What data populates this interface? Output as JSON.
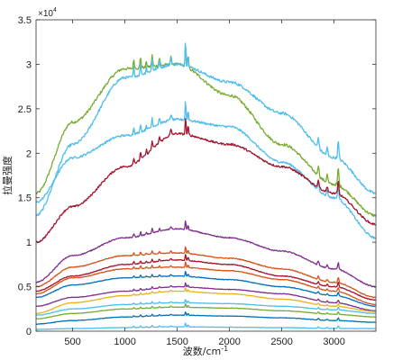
{
  "chart_data": {
    "type": "line",
    "title": "",
    "xlabel": "波数/cm",
    "xlabel_sup": "-1",
    "ylabel": "拉曼强度",
    "y_multiplier_base": "×10",
    "y_multiplier_exp": "4",
    "xlim": [
      150,
      3400
    ],
    "ylim": [
      0,
      3.5
    ],
    "x_ticks": [
      500,
      1000,
      1500,
      2000,
      2500,
      3000
    ],
    "x_tick_labels": [
      "500",
      "1000",
      "1500",
      "2000",
      "2500",
      "3000"
    ],
    "y_ticks": [
      0,
      0.5,
      1,
      1.5,
      2,
      2.5,
      3,
      3.5
    ],
    "y_tick_labels": [
      "0",
      "0.5",
      "1",
      "1.5",
      "2",
      "2.5",
      "3",
      "3.5"
    ],
    "grid": false,
    "x": [
      150,
      500,
      1000,
      1500,
      2000,
      2500,
      3000,
      3400
    ],
    "series": [
      {
        "color": "#77AC30",
        "values": [
          1.55,
          2.35,
          2.95,
          3.0,
          2.65,
          2.1,
          1.65,
          1.3
        ]
      },
      {
        "color": "#4DBEEE",
        "values": [
          1.3,
          2.1,
          2.85,
          3.0,
          2.8,
          2.45,
          1.95,
          1.55
        ]
      },
      {
        "color": "#4DBEEE",
        "values": [
          1.45,
          1.95,
          2.2,
          2.38,
          2.3,
          1.9,
          1.5,
          1.05
        ]
      },
      {
        "color": "#A2142F",
        "values": [
          1.0,
          1.4,
          1.85,
          2.22,
          2.1,
          1.85,
          1.55,
          1.2
        ]
      },
      {
        "color": "#7E2F8E",
        "values": [
          0.55,
          0.85,
          1.05,
          1.15,
          1.05,
          0.9,
          0.7,
          0.5
        ]
      },
      {
        "color": "#D95319",
        "values": [
          0.5,
          0.72,
          0.85,
          0.88,
          0.82,
          0.7,
          0.55,
          0.38
        ]
      },
      {
        "color": "#A2142F",
        "values": [
          0.45,
          0.62,
          0.75,
          0.8,
          0.75,
          0.62,
          0.5,
          0.35
        ]
      },
      {
        "color": "#D95319",
        "values": [
          0.42,
          0.6,
          0.7,
          0.72,
          0.68,
          0.58,
          0.45,
          0.3
        ]
      },
      {
        "color": "#0072BD",
        "values": [
          0.38,
          0.52,
          0.6,
          0.62,
          0.58,
          0.5,
          0.4,
          0.28
        ]
      },
      {
        "color": "#7E2F8E",
        "values": [
          0.28,
          0.38,
          0.45,
          0.5,
          0.47,
          0.42,
          0.32,
          0.23
        ]
      },
      {
        "color": "#EDB120",
        "values": [
          0.2,
          0.32,
          0.4,
          0.45,
          0.42,
          0.36,
          0.28,
          0.22
        ]
      },
      {
        "color": "#4DBEEE",
        "values": [
          0.18,
          0.25,
          0.3,
          0.32,
          0.31,
          0.28,
          0.24,
          0.2
        ]
      },
      {
        "color": "#77AC30",
        "values": [
          0.14,
          0.2,
          0.25,
          0.27,
          0.26,
          0.23,
          0.19,
          0.16
        ]
      },
      {
        "color": "#0072BD",
        "values": [
          0.08,
          0.12,
          0.16,
          0.18,
          0.17,
          0.15,
          0.12,
          0.1
        ]
      },
      {
        "color": "#4DBEEE",
        "values": [
          0.02,
          0.03,
          0.04,
          0.05,
          0.045,
          0.04,
          0.03,
          0.03
        ]
      }
    ],
    "peaks": [
      {
        "x": 1085,
        "h": 0.1,
        "w": 7
      },
      {
        "x": 1150,
        "h": 0.12,
        "w": 7
      },
      {
        "x": 1205,
        "h": 0.07,
        "w": 6
      },
      {
        "x": 1260,
        "h": 0.13,
        "w": 7
      },
      {
        "x": 1330,
        "h": 0.09,
        "w": 7
      },
      {
        "x": 1440,
        "h": 0.08,
        "w": 9
      },
      {
        "x": 1580,
        "h": 0.28,
        "w": 6
      },
      {
        "x": 1605,
        "h": 0.14,
        "w": 6
      },
      {
        "x": 2850,
        "h": 0.12,
        "w": 9
      },
      {
        "x": 2935,
        "h": 0.09,
        "w": 9
      },
      {
        "x": 3040,
        "h": 0.2,
        "w": 8
      }
    ]
  }
}
